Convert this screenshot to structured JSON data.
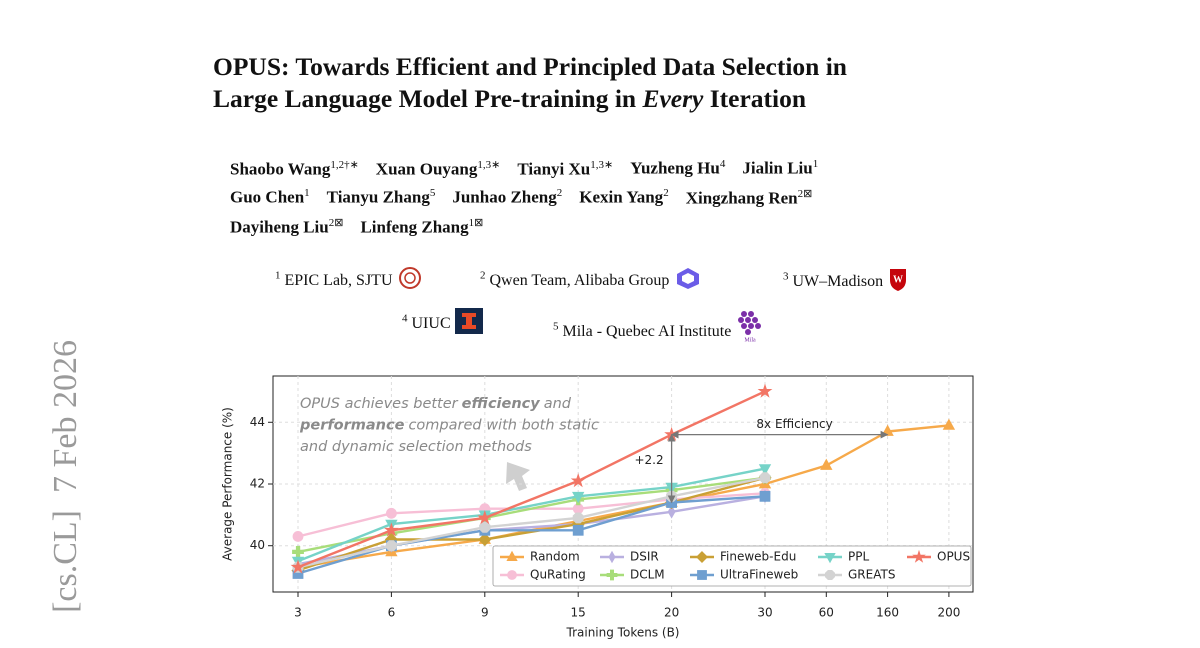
{
  "side_stamp": "[cs.CL]  7 Feb 2026",
  "header": {
    "title_line1": "OPUS: Towards Efficient and Principled Data Selection in",
    "title_line2": [
      "Large Language Model Pre-training in",
      "Every",
      "Iteration"
    ],
    "authors": [
      {
        "name": "Shaobo Wang",
        "sup": "1,2†∗"
      },
      {
        "name": "Xuan Ouyang",
        "sup": "1,3∗"
      },
      {
        "name": "Tianyi Xu",
        "sup": "1,3∗"
      },
      {
        "name": "Yuzheng Hu",
        "sup": "4"
      },
      {
        "name": "Jialin Liu",
        "sup": "1"
      },
      {
        "name": "Guo Chen",
        "sup": "1"
      },
      {
        "name": "Tianyu Zhang",
        "sup": "5"
      },
      {
        "name": "Junhao Zheng",
        "sup": "2"
      },
      {
        "name": "Kexin Yang",
        "sup": "2"
      },
      {
        "name": "Xingzhang Ren",
        "sup": "2⊠"
      },
      {
        "name": "Dayiheng Liu",
        "sup": "2⊠"
      },
      {
        "name": "Linfeng Zhang",
        "sup": "1⊠"
      }
    ],
    "affiliations": [
      {
        "sup": "1",
        "name": "EPIC Lab, SJTU"
      },
      {
        "sup": "2",
        "name": "Qwen Team, Alibaba Group"
      },
      {
        "sup": "3",
        "name": "UW–Madison"
      },
      {
        "sup": "4",
        "name": "UIUC"
      },
      {
        "sup": "5",
        "name": "Mila - Quebec AI Institute"
      }
    ],
    "mila_logo_text": "Mila"
  },
  "chart_data": {
    "type": "line",
    "x_label": "Training Tokens (B)",
    "y_label": "Average Performance (%)",
    "categories": [
      "3",
      "6",
      "9",
      "15",
      "20",
      "30",
      "60",
      "160",
      "200"
    ],
    "ylim": [
      38.5,
      45.5
    ],
    "yticks": [
      40,
      42,
      44
    ],
    "grid": true,
    "legend": "lower right",
    "annotation": [
      [
        "OPUS achieves better",
        "efficiency",
        "and"
      ],
      [
        "performance",
        "compared with both static"
      ],
      [
        "and dynamic selection methods"
      ]
    ],
    "efficiency_label": "8x Efficiency",
    "gain_label": "+2.2",
    "series": [
      {
        "name": "Random",
        "color": "#f6a94a",
        "marker": "triangle",
        "values": [
          39.3,
          39.8,
          40.2,
          40.8,
          41.4,
          42.0,
          42.6,
          43.7,
          43.9
        ]
      },
      {
        "name": "QuRating",
        "color": "#f7bfd6",
        "marker": "circle",
        "values": [
          40.3,
          41.05,
          41.2,
          41.2,
          41.5,
          41.7,
          null,
          null,
          null
        ]
      },
      {
        "name": "DSIR",
        "color": "#b9b0e0",
        "marker": "thin-diamond",
        "values": [
          39.4,
          40.0,
          40.5,
          40.7,
          41.1,
          41.6,
          null,
          null,
          null
        ]
      },
      {
        "name": "DCLM",
        "color": "#a8dd7a",
        "marker": "plus",
        "values": [
          39.8,
          40.4,
          40.9,
          41.5,
          41.8,
          42.2,
          null,
          null,
          null
        ]
      },
      {
        "name": "Fineweb-Edu",
        "color": "#c9a035",
        "marker": "diamond",
        "values": [
          39.2,
          40.2,
          40.2,
          40.7,
          41.4,
          42.2,
          null,
          null,
          null
        ]
      },
      {
        "name": "UltraFineweb",
        "color": "#6f9fd0",
        "marker": "square",
        "values": [
          39.1,
          40.0,
          40.5,
          40.5,
          41.4,
          41.6,
          null,
          null,
          null
        ]
      },
      {
        "name": "PPL",
        "color": "#76d3c8",
        "marker": "triangle-down",
        "values": [
          39.5,
          40.7,
          41.0,
          41.6,
          41.9,
          42.5,
          null,
          null,
          null
        ]
      },
      {
        "name": "GREATS",
        "color": "#d3d3d3",
        "marker": "octagon",
        "values": [
          39.3,
          40.0,
          40.6,
          40.9,
          41.6,
          42.2,
          null,
          null,
          null
        ]
      },
      {
        "name": "OPUS",
        "color": "#f27565",
        "marker": "star",
        "values": [
          39.3,
          40.5,
          40.9,
          42.1,
          43.6,
          45.0,
          null,
          null,
          null
        ]
      }
    ]
  }
}
